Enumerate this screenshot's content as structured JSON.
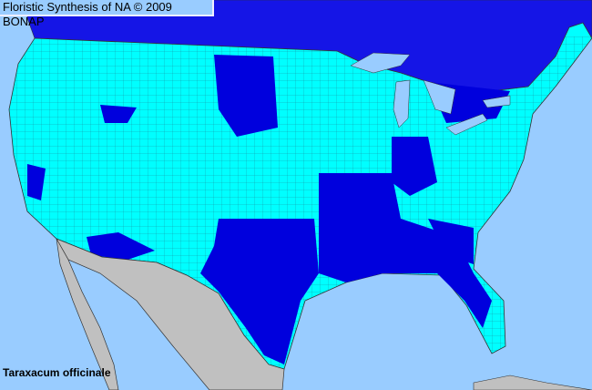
{
  "header": {
    "title": "Floristic Synthesis of NA © 2009 BONAP"
  },
  "species": {
    "name": "Taraxacum officinale"
  },
  "colors": {
    "ocean_water": "#99ccff",
    "present_in_state_county_absent": "#00ffff",
    "county_present": "#0000dd",
    "canada_present": "#1515e6",
    "mexico": "#c0c0c0",
    "boundaries": "#333333"
  }
}
